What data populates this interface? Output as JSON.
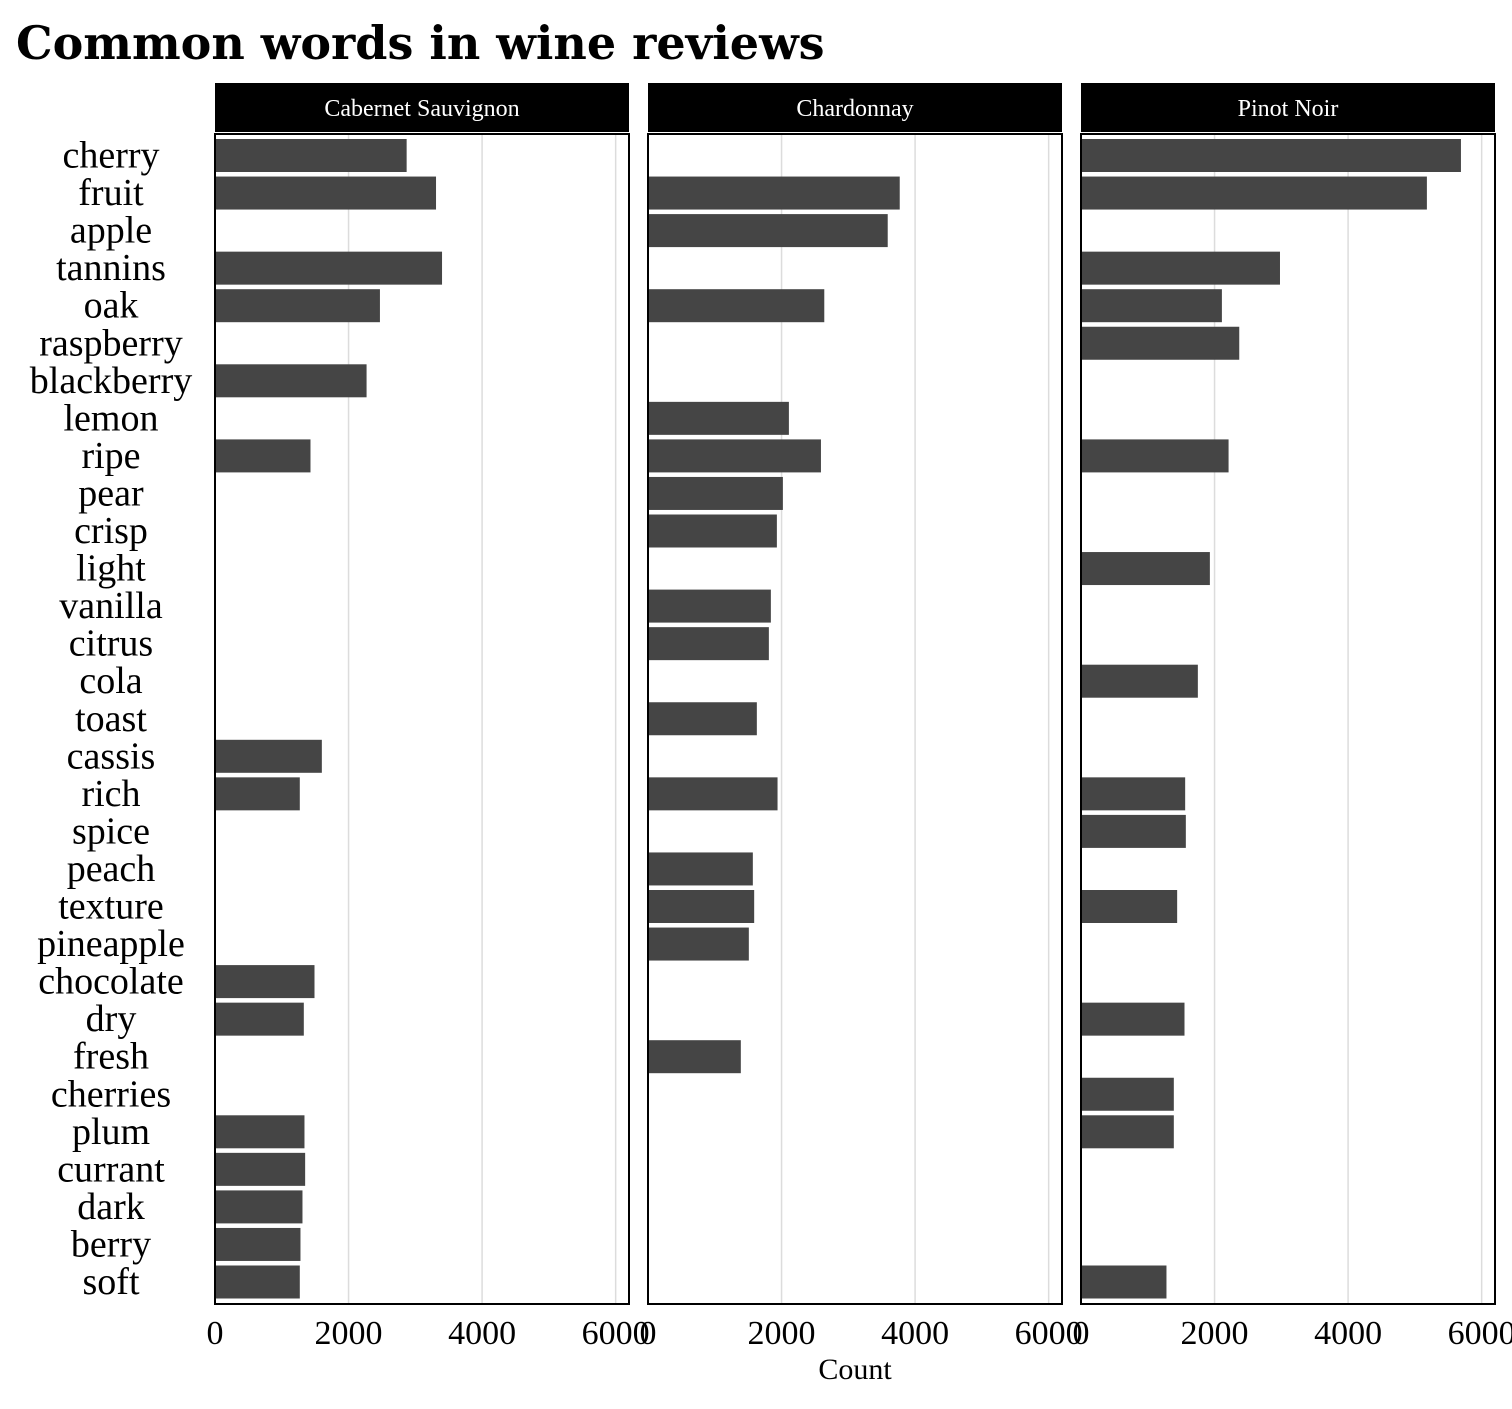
{
  "chart_data": {
    "type": "bar",
    "orientation": "horizontal",
    "title": "Common words in wine reviews",
    "xlabel": "Count",
    "ylabel": "",
    "xlim": [
      0,
      6200
    ],
    "x_ticks": [
      "0",
      "2000",
      "4000",
      "6000"
    ],
    "grid": "vertical",
    "bar_color": "#454545",
    "strip_color": "#000000",
    "categories": [
      "cherry",
      "fruit",
      "apple",
      "tannins",
      "oak",
      "raspberry",
      "blackberry",
      "lemon",
      "ripe",
      "pear",
      "crisp",
      "light",
      "vanilla",
      "citrus",
      "cola",
      "toast",
      "cassis",
      "rich",
      "spice",
      "peach",
      "texture",
      "pineapple",
      "chocolate",
      "dry",
      "fresh",
      "cherries",
      "plum",
      "currant",
      "dark",
      "berry",
      "soft"
    ],
    "facets": [
      {
        "name": "Cabernet Sauvignon",
        "values": [
          2870,
          3310,
          null,
          3400,
          2470,
          null,
          2270,
          null,
          1430,
          null,
          null,
          null,
          null,
          null,
          null,
          null,
          1600,
          1270,
          null,
          null,
          null,
          null,
          1490,
          1330,
          null,
          null,
          1340,
          1350,
          1310,
          1280,
          1270
        ]
      },
      {
        "name": "Chardonnay",
        "values": [
          null,
          3770,
          3590,
          null,
          2640,
          null,
          null,
          2110,
          2590,
          2020,
          1930,
          null,
          1840,
          1810,
          null,
          1630,
          null,
          1940,
          null,
          1570,
          1590,
          1510,
          null,
          null,
          1390,
          null,
          null,
          null,
          null,
          null,
          null
        ]
      },
      {
        "name": "Pinot Noir",
        "values": [
          5690,
          5180,
          null,
          2980,
          2110,
          2370,
          null,
          null,
          2210,
          null,
          null,
          1930,
          null,
          null,
          1750,
          null,
          null,
          1560,
          1570,
          null,
          1440,
          null,
          null,
          1550,
          null,
          1390,
          1390,
          null,
          null,
          null,
          1280
        ]
      }
    ]
  }
}
